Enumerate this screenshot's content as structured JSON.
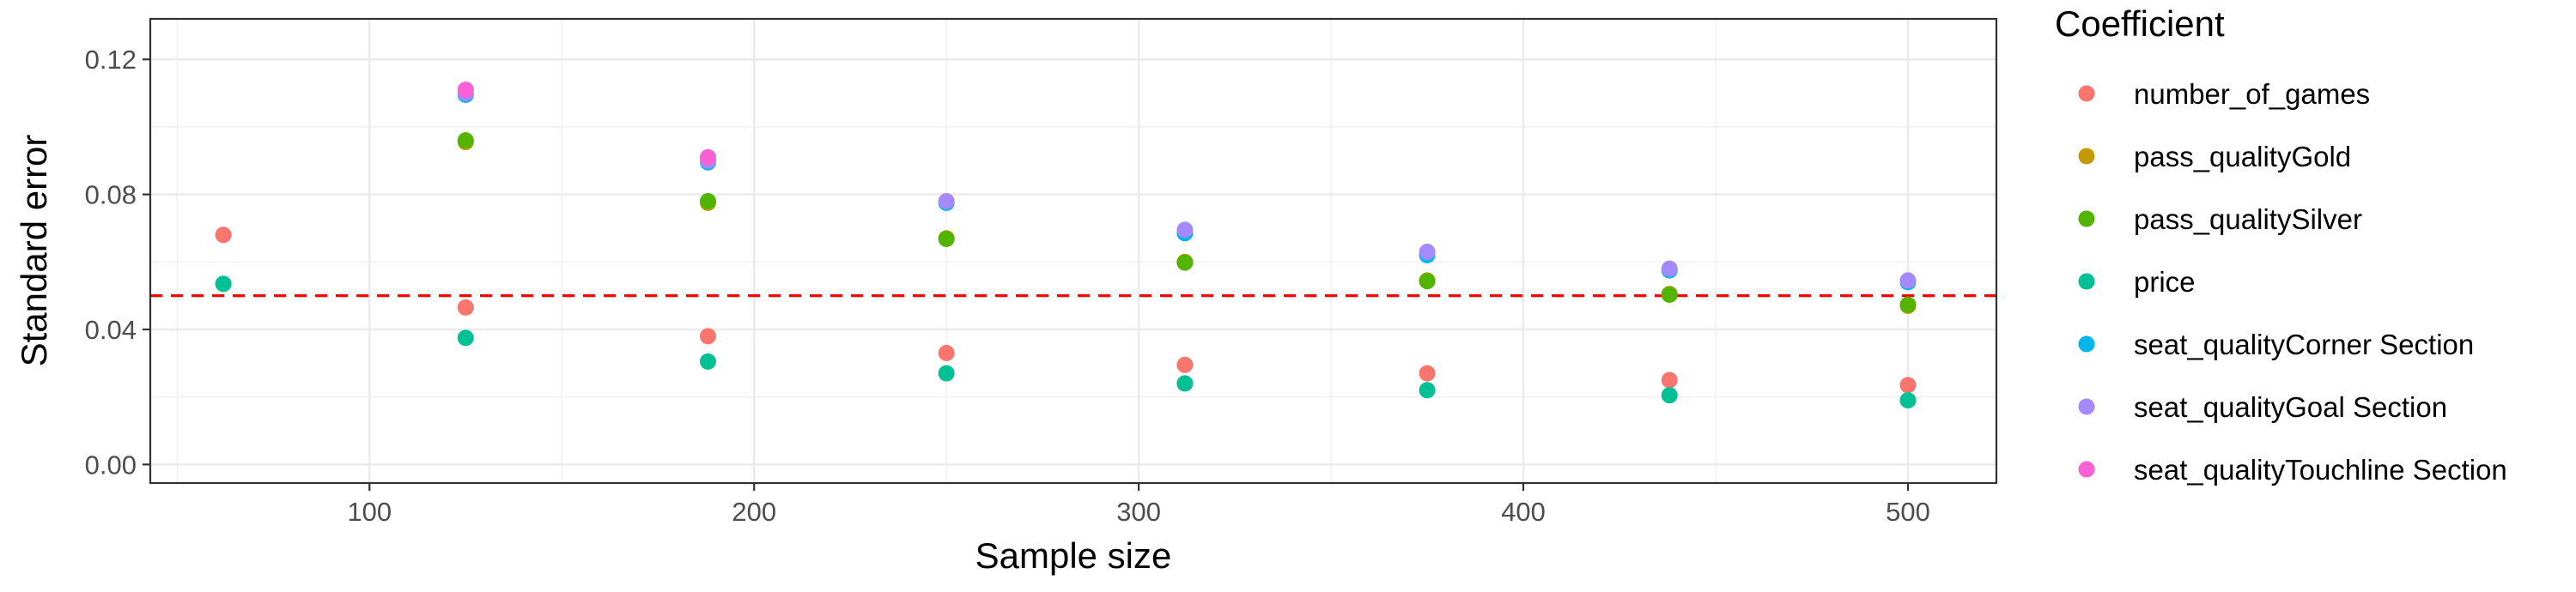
{
  "chart_data": {
    "type": "scatter",
    "xlabel": "Sample size",
    "ylabel": "Standard error",
    "xlim": [
      43,
      523
    ],
    "ylim": [
      -0.0055,
      0.132
    ],
    "x_ticks": [
      100,
      200,
      300,
      400,
      500
    ],
    "x_tick_labels": [
      "100",
      "200",
      "300",
      "400",
      "500"
    ],
    "y_ticks": [
      0.0,
      0.04,
      0.08,
      0.12
    ],
    "y_tick_labels": [
      "0.00",
      "0.04",
      "0.08",
      "0.12"
    ],
    "grid": true,
    "legend": {
      "title": "Coefficient",
      "position": "right"
    },
    "reference_line": {
      "y": 0.05,
      "color": "#ff0000",
      "style": "dashed"
    },
    "series": [
      {
        "name": "number_of_games",
        "color": "#F8766D",
        "x": [
          62,
          125,
          188,
          250,
          312,
          375,
          438,
          500
        ],
        "y": [
          0.068,
          0.0465,
          0.038,
          0.033,
          0.0295,
          0.027,
          0.025,
          0.0235
        ]
      },
      {
        "name": "pass_qualityGold",
        "color": "#C49A00",
        "x": [
          125,
          188,
          250,
          312,
          375,
          438,
          500
        ],
        "y": [
          0.0955,
          0.0775,
          0.067,
          0.06,
          0.0545,
          0.0505,
          0.047
        ]
      },
      {
        "name": "pass_qualitySilver",
        "color": "#53B400",
        "x": [
          125,
          188,
          250,
          312,
          375,
          438,
          500
        ],
        "y": [
          0.096,
          0.078,
          0.0668,
          0.0598,
          0.0543,
          0.0503,
          0.0473
        ]
      },
      {
        "name": "price",
        "color": "#00C094",
        "x": [
          62,
          125,
          188,
          250,
          312,
          375,
          438,
          500
        ],
        "y": [
          0.0535,
          0.0375,
          0.0305,
          0.027,
          0.024,
          0.022,
          0.0205,
          0.019
        ]
      },
      {
        "name": "seat_qualityCorner Section",
        "color": "#00B6EB",
        "x": [
          125,
          188,
          250,
          312,
          375,
          438,
          500
        ],
        "y": [
          0.1095,
          0.0895,
          0.0775,
          0.0685,
          0.062,
          0.0575,
          0.054
        ]
      },
      {
        "name": "seat_qualityGoal Section",
        "color": "#A58AFF",
        "x": [
          125,
          188,
          250,
          312,
          375,
          438,
          500
        ],
        "y": [
          0.11,
          0.09,
          0.078,
          0.0695,
          0.063,
          0.058,
          0.0545
        ]
      },
      {
        "name": "seat_qualityTouchline Section",
        "color": "#FB61D7",
        "x": [
          125,
          188
        ],
        "y": [
          0.111,
          0.091
        ]
      }
    ]
  }
}
